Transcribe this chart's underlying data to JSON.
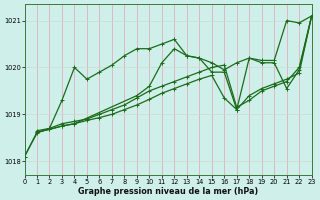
{
  "xlabel": "Graphe pression niveau de la mer (hPa)",
  "bg_color": "#cff0ea",
  "line_color": "#1a6b1a",
  "xlim": [
    0,
    23
  ],
  "ylim": [
    1017.7,
    1021.35
  ],
  "yticks": [
    1018,
    1019,
    1020,
    1021
  ],
  "xticks": [
    0,
    1,
    2,
    3,
    4,
    5,
    6,
    7,
    8,
    9,
    10,
    11,
    12,
    13,
    14,
    15,
    16,
    17,
    18,
    19,
    20,
    21,
    22,
    23
  ],
  "line1_x": [
    0,
    1,
    2,
    3,
    4,
    5,
    6,
    7,
    8,
    9,
    10,
    11,
    12,
    13,
    14,
    15,
    16,
    17,
    18,
    19,
    20,
    21,
    22,
    23
  ],
  "line1_y": [
    1018.1,
    1018.6,
    1018.7,
    1019.3,
    1020.0,
    1019.75,
    1019.9,
    1020.05,
    1020.25,
    1020.4,
    1020.4,
    1020.5,
    1020.6,
    1020.25,
    1020.2,
    1020.1,
    1019.95,
    1020.1,
    1020.2,
    1020.15,
    1020.15,
    1021.0,
    1020.95,
    1021.1
  ],
  "line2_x": [
    1,
    2,
    3,
    4,
    5,
    6,
    7,
    8,
    9,
    10,
    11,
    12,
    13,
    14,
    15,
    16,
    17,
    18,
    19,
    20,
    21,
    22,
    23
  ],
  "line2_y": [
    1018.65,
    1018.7,
    1018.8,
    1018.85,
    1018.9,
    1019.0,
    1019.1,
    1019.2,
    1019.35,
    1019.5,
    1019.6,
    1019.7,
    1019.8,
    1019.9,
    1020.0,
    1020.05,
    1019.15,
    1019.3,
    1019.5,
    1019.6,
    1019.7,
    1020.0,
    1021.1
  ],
  "line3_x": [
    0,
    1,
    2,
    3,
    4,
    5,
    6,
    7,
    8,
    9,
    10,
    11,
    12,
    13,
    14,
    15,
    16,
    17,
    18,
    19,
    20,
    21,
    22,
    23
  ],
  "line3_y": [
    1018.1,
    1018.62,
    1018.68,
    1018.75,
    1018.8,
    1018.87,
    1018.93,
    1019.0,
    1019.1,
    1019.2,
    1019.32,
    1019.45,
    1019.55,
    1019.65,
    1019.75,
    1019.83,
    1019.35,
    1019.1,
    1019.4,
    1019.55,
    1019.65,
    1019.75,
    1019.88,
    1021.1
  ],
  "line4_x": [
    1,
    2,
    3,
    4,
    9,
    10,
    11,
    12,
    13,
    14,
    15,
    16,
    17,
    18,
    19,
    20,
    21,
    22,
    23
  ],
  "line4_y": [
    1018.62,
    1018.68,
    1018.75,
    1018.8,
    1019.4,
    1019.6,
    1020.1,
    1020.4,
    1020.25,
    1020.2,
    1019.9,
    1019.9,
    1019.1,
    1020.2,
    1020.1,
    1020.1,
    1019.55,
    1019.95,
    1021.1
  ],
  "marker_size": 2.5,
  "line_width": 0.9
}
